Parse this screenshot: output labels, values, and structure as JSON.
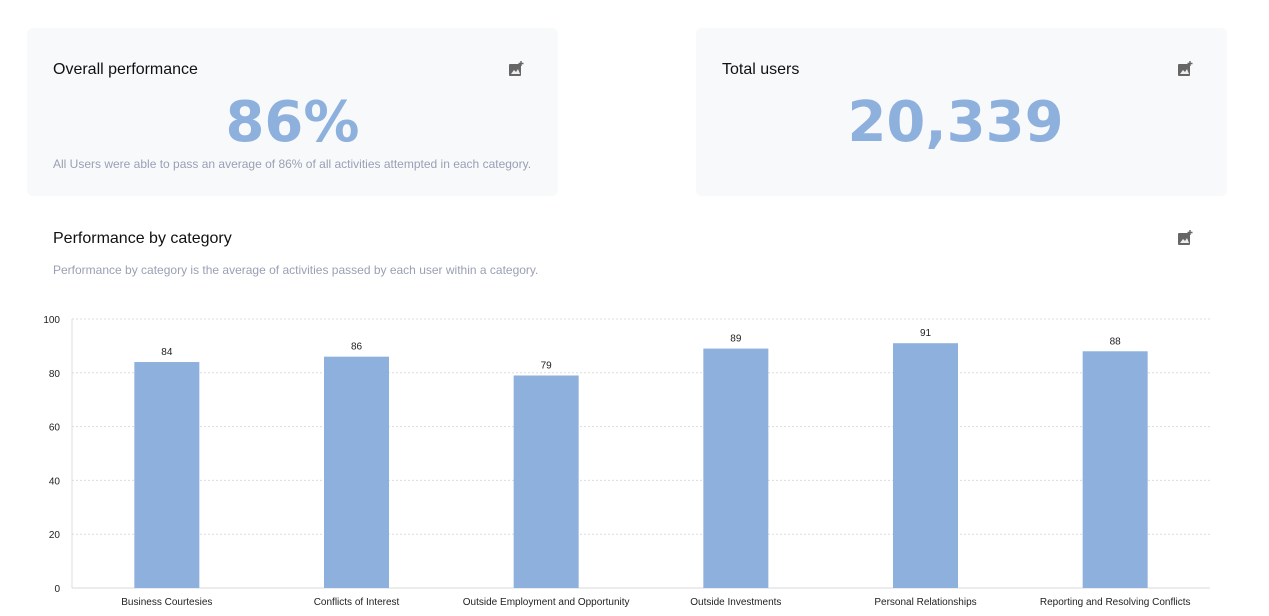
{
  "cards": {
    "overall": {
      "title": "Overall performance",
      "value": "86%",
      "description": "All Users were able to pass an average of 86% of all activities attempted in each category.",
      "icon": "add-photo-icon"
    },
    "users": {
      "title": "Total users",
      "value": "20,339",
      "icon": "add-photo-icon"
    }
  },
  "section": {
    "title": "Performance by category",
    "description": "Performance by category is the average of activities passed by each user within a category.",
    "icon": "add-photo-icon"
  },
  "colors": {
    "bar": "#8db0dd",
    "accent_number": "#8db0dd",
    "card_bg": "#f8f9fb",
    "muted_text": "#9aa0b4"
  },
  "chart_data": {
    "type": "bar",
    "title": "Performance by category",
    "categories": [
      "Business Courtesies",
      "Conflicts of Interest",
      "Outside Employment and Opportunity",
      "Outside Investments",
      "Personal Relationships",
      "Reporting and Resolving Conflicts"
    ],
    "values": [
      84,
      86,
      79,
      89,
      91,
      88
    ],
    "data_labels": [
      "84",
      "86",
      "79",
      "89",
      "91",
      "88"
    ],
    "xlabel": "",
    "ylabel": "",
    "ylim": [
      0,
      100
    ],
    "yticks": [
      0,
      20,
      40,
      60,
      80,
      100
    ],
    "grid": true,
    "legend": "none"
  }
}
